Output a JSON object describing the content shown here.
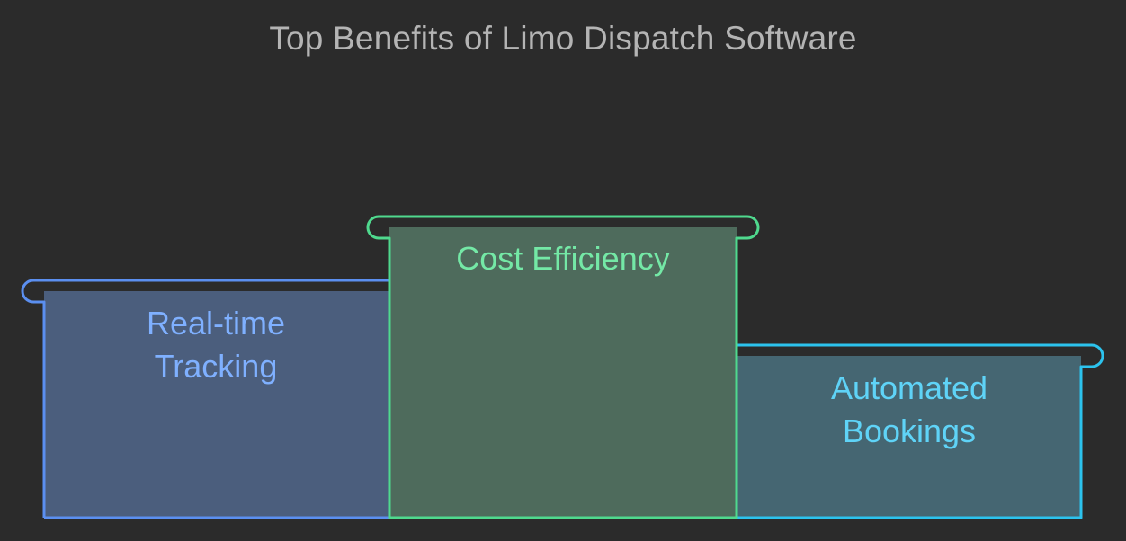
{
  "title": "Top Benefits of Limo Dispatch Software",
  "steps": [
    {
      "name": "blue",
      "lines": [
        "Real-time",
        "Tracking"
      ],
      "color": "#5b8ff0",
      "fill": "#4b5e7d",
      "text_color": "#7fb0ff"
    },
    {
      "name": "green",
      "lines": [
        "Cost Efficiency"
      ],
      "color": "#4fd98e",
      "fill": "#4e6b5c",
      "text_color": "#74e8a6"
    },
    {
      "name": "cyan",
      "lines": [
        "Automated",
        "Bookings"
      ],
      "color": "#2cc3ee",
      "fill": "#456672",
      "text_color": "#5fd3f7"
    }
  ]
}
